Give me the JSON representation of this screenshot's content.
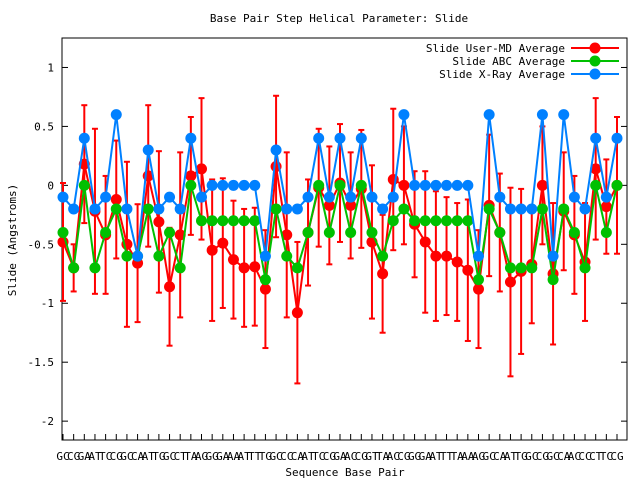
{
  "chart_data": {
    "type": "line",
    "title": "Base Pair Step Helical Parameter: Slide",
    "xlabel": "Sequence Base Pair",
    "ylabel": "Slide (Angstroms)",
    "ylim": [
      -2.16,
      1.25
    ],
    "yticks": [
      1,
      0.5,
      0,
      -0.5,
      -1,
      -1.5,
      -2
    ],
    "ytick_labels": [
      "1",
      "0.5",
      "0",
      "-0.5",
      "-1",
      "-1.5",
      "-2"
    ],
    "grid": false,
    "legend_position": "top-right",
    "x_tick_labels": [
      "GC",
      "CG",
      "GA",
      "AT",
      "TC",
      "CG",
      "GC",
      "CA",
      "AT",
      "TG",
      "GC",
      "CT",
      "TA",
      "AG",
      "GG",
      "GA",
      "AA",
      "AT",
      "TT",
      "TG",
      "GC",
      "CC",
      "CA",
      "AT",
      "TC",
      "CG",
      "GA",
      "AC",
      "CG",
      "GT",
      "TA",
      "AC",
      "CG",
      "GG",
      "GA",
      "AT",
      "TT",
      "TA",
      "AA",
      "AG",
      "GC",
      "CA",
      "AT",
      "TG",
      "GC",
      "CG",
      "GC",
      "CA",
      "AC",
      "CC",
      "CT",
      "TC",
      "CG"
    ],
    "series": [
      {
        "name": "Slide User-MD Average",
        "color": "#ff0000",
        "values": [
          -0.48,
          -0.7,
          0.18,
          -0.22,
          -0.42,
          -0.12,
          -0.5,
          -0.66,
          0.08,
          -0.31,
          -0.86,
          -0.42,
          0.08,
          0.14,
          -0.55,
          -0.49,
          -0.63,
          -0.7,
          -0.69,
          -0.88,
          0.16,
          -0.42,
          -1.08,
          -0.4,
          -0.02,
          -0.17,
          0.02,
          -0.17,
          -0.03,
          -0.48,
          -0.75,
          0.05,
          0.0,
          -0.33,
          -0.48,
          -0.6,
          -0.6,
          -0.65,
          -0.72,
          -0.88,
          -0.17,
          -0.4,
          -0.82,
          -0.73,
          -0.67,
          0.0,
          -0.75,
          -0.22,
          -0.42,
          -0.65,
          0.14,
          -0.18,
          0.0
        ],
        "errors": [
          0.5,
          0.2,
          0.5,
          0.7,
          0.5,
          0.5,
          0.7,
          0.5,
          0.6,
          0.6,
          0.5,
          0.7,
          0.5,
          0.6,
          0.6,
          0.55,
          0.5,
          0.5,
          0.5,
          0.5,
          0.6,
          0.7,
          0.6,
          0.45,
          0.5,
          0.5,
          0.5,
          0.45,
          0.5,
          0.65,
          0.5,
          0.6,
          0.5,
          0.45,
          0.6,
          0.55,
          0.5,
          0.5,
          0.6,
          0.5,
          0.6,
          0.5,
          0.8,
          0.7,
          0.5,
          0.5,
          0.6,
          0.5,
          0.5,
          0.5,
          0.6,
          0.4,
          0.58
        ]
      },
      {
        "name": "Slide ABC Average",
        "color": "#00c000",
        "values": [
          -0.4,
          -0.7,
          0,
          -0.7,
          -0.4,
          -0.2,
          -0.6,
          -0.6,
          -0.2,
          -0.6,
          -0.4,
          -0.7,
          0,
          -0.3,
          -0.3,
          -0.3,
          -0.3,
          -0.3,
          -0.3,
          -0.8,
          -0.2,
          -0.6,
          -0.7,
          -0.4,
          0,
          -0.4,
          0,
          -0.4,
          0,
          -0.4,
          -0.6,
          -0.3,
          -0.2,
          -0.3,
          -0.3,
          -0.3,
          -0.3,
          -0.3,
          -0.3,
          -0.8,
          -0.2,
          -0.4,
          -0.7,
          -0.7,
          -0.7,
          -0.2,
          -0.8,
          -0.2,
          -0.4,
          -0.7,
          0,
          -0.4,
          0
        ]
      },
      {
        "name": "Slide X-Ray Average",
        "color": "#0080ff",
        "values": [
          -0.1,
          -0.2,
          0.4,
          -0.2,
          -0.1,
          0.6,
          -0.2,
          -0.6,
          0.3,
          -0.2,
          -0.1,
          -0.2,
          0.4,
          -0.1,
          0,
          0,
          0,
          0,
          0,
          -0.6,
          0.3,
          -0.2,
          -0.2,
          -0.1,
          0.4,
          -0.1,
          0.4,
          -0.1,
          0.4,
          -0.1,
          -0.2,
          -0.1,
          0.6,
          0,
          0,
          0,
          0,
          0,
          0,
          -0.6,
          0.6,
          -0.1,
          -0.2,
          -0.2,
          -0.2,
          0.6,
          -0.6,
          0.6,
          -0.1,
          -0.2,
          0.4,
          -0.1,
          0.4
        ]
      }
    ]
  }
}
